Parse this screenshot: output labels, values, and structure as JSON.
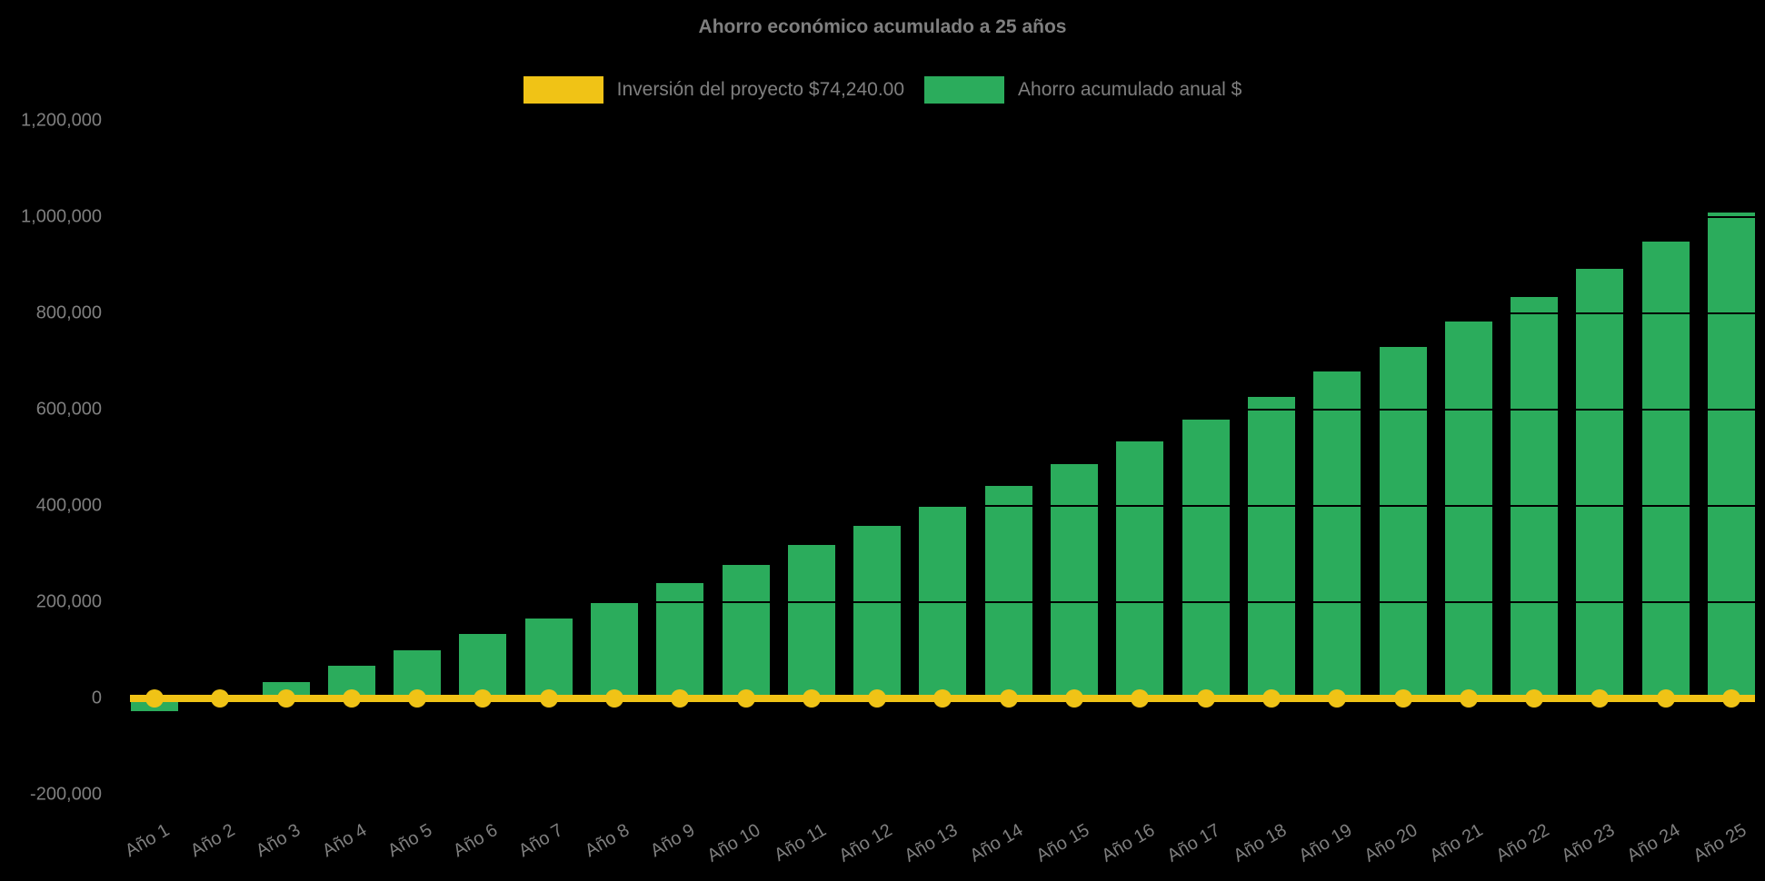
{
  "title": "Ahorro económico acumulado a 25 años",
  "legend": {
    "investment": {
      "label": "Inversión del proyecto $74,240.00",
      "color": "#F0C316"
    },
    "savings": {
      "label": "Ahorro acumulado anual $",
      "color": "#2BAC5C"
    }
  },
  "colors": {
    "background": "#000000",
    "bar_green": "#2BAC5C",
    "line_yellow": "#F0C316",
    "text_gray": "#7F7F7F",
    "gridline": "#000000"
  },
  "chart_data": {
    "type": "bar",
    "title": "Ahorro económico acumulado a 25 años",
    "categories": [
      "Año 1",
      "Año 2",
      "Año 3",
      "Año 4",
      "Año 5",
      "Año 6",
      "Año 7",
      "Año 8",
      "Año 9",
      "Año 10",
      "Año 11",
      "Año 12",
      "Año 13",
      "Año 14",
      "Año 15",
      "Año 16",
      "Año 17",
      "Año 18",
      "Año 19",
      "Año 20",
      "Año 21",
      "Año 22",
      "Año 23",
      "Año 24",
      "Año 25"
    ],
    "series": [
      {
        "name": "Ahorro acumulado anual $",
        "type": "bar",
        "color": "#2BAC5C",
        "values": [
          -26000,
          4000,
          34000,
          68000,
          100000,
          134000,
          166000,
          202000,
          240000,
          277000,
          319000,
          358000,
          398000,
          442000,
          487000,
          534000,
          579000,
          626000,
          679000,
          730000,
          783000,
          834000,
          892000,
          949000,
          1009000
        ]
      },
      {
        "name": "Inversión del proyecto $74,240.00",
        "type": "line",
        "color": "#F0C316",
        "marker": "circle",
        "values": [
          0,
          0,
          0,
          0,
          0,
          0,
          0,
          0,
          0,
          0,
          0,
          0,
          0,
          0,
          0,
          0,
          0,
          0,
          0,
          0,
          0,
          0,
          0,
          0,
          0
        ]
      }
    ],
    "xlabel": "",
    "ylabel": "",
    "ylim": [
      -200000,
      1200000
    ],
    "yticks": [
      1200000,
      1000000,
      800000,
      600000,
      400000,
      200000,
      0,
      -200000
    ],
    "grid": "horizontal",
    "legend_position": "top-center"
  }
}
